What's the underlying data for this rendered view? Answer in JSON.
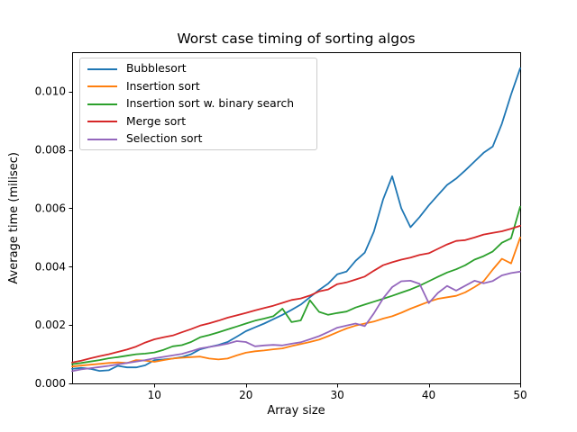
{
  "chart_data": {
    "type": "line",
    "title": "Worst case timing of sorting algos",
    "xlabel": "Array size",
    "ylabel": "Average time (milisec)",
    "grid": false,
    "legend_position": "upper left",
    "xlim": [
      1,
      50
    ],
    "ylim": [
      0,
      0.011348
    ],
    "xticks": [
      10,
      20,
      30,
      40,
      50
    ],
    "xtick_labels": [
      "10",
      "20",
      "30",
      "40",
      "50"
    ],
    "yticks": [
      0.0,
      0.002,
      0.004,
      0.006,
      0.008,
      0.01
    ],
    "ytick_labels": [
      "0.000",
      "0.002",
      "0.004",
      "0.006",
      "0.008",
      "0.010"
    ],
    "x": [
      1,
      2,
      3,
      4,
      5,
      6,
      7,
      8,
      9,
      10,
      11,
      12,
      13,
      14,
      15,
      16,
      17,
      18,
      19,
      20,
      21,
      22,
      23,
      24,
      25,
      26,
      27,
      28,
      29,
      30,
      31,
      32,
      33,
      34,
      35,
      36,
      37,
      38,
      39,
      40,
      41,
      42,
      43,
      44,
      45,
      46,
      47,
      48,
      49,
      50
    ],
    "series": [
      {
        "name": "Bubblesort",
        "color": "#1f77b4",
        "values": [
          0.0005,
          0.00053,
          0.0005,
          0.00043,
          0.00045,
          0.0006,
          0.00055,
          0.00055,
          0.00062,
          0.0008,
          0.00082,
          0.00085,
          0.0009,
          0.001,
          0.00117,
          0.00125,
          0.00132,
          0.00142,
          0.0016,
          0.00179,
          0.00192,
          0.00205,
          0.0022,
          0.00235,
          0.00252,
          0.0027,
          0.00295,
          0.0032,
          0.00342,
          0.00374,
          0.00383,
          0.0042,
          0.00448,
          0.0052,
          0.0063,
          0.0071,
          0.006,
          0.00535,
          0.0057,
          0.0061,
          0.00645,
          0.0068,
          0.00702,
          0.0073,
          0.0076,
          0.0079,
          0.00812,
          0.0089,
          0.0099,
          0.0108
        ]
      },
      {
        "name": "Insertion sort",
        "color": "#ff7f0e",
        "values": [
          0.00058,
          0.00061,
          0.00064,
          0.00067,
          0.0007,
          0.00072,
          0.0007,
          0.0008,
          0.00078,
          0.00074,
          0.0008,
          0.00085,
          0.00088,
          0.0009,
          0.00092,
          0.00085,
          0.00082,
          0.00085,
          0.00096,
          0.00105,
          0.0011,
          0.00113,
          0.00117,
          0.0012,
          0.00128,
          0.00135,
          0.00142,
          0.0015,
          0.00162,
          0.00175,
          0.00188,
          0.00198,
          0.00205,
          0.00212,
          0.00222,
          0.0023,
          0.00242,
          0.00256,
          0.00268,
          0.0028,
          0.0029,
          0.00295,
          0.003,
          0.00312,
          0.0033,
          0.0035,
          0.0039,
          0.00427,
          0.00411,
          0.005
        ]
      },
      {
        "name": "Insertion sort w. binary search",
        "color": "#2ca02c",
        "values": [
          0.00066,
          0.0007,
          0.00075,
          0.0008,
          0.00086,
          0.0009,
          0.00095,
          0.001,
          0.00102,
          0.00106,
          0.00115,
          0.00127,
          0.00131,
          0.00142,
          0.00158,
          0.00166,
          0.00175,
          0.00185,
          0.00195,
          0.00205,
          0.00215,
          0.00222,
          0.0023,
          0.00256,
          0.0021,
          0.00216,
          0.00285,
          0.00245,
          0.00235,
          0.00241,
          0.00246,
          0.0026,
          0.0027,
          0.0028,
          0.0029,
          0.003,
          0.00311,
          0.00322,
          0.00335,
          0.0035,
          0.00365,
          0.0038,
          0.00391,
          0.00405,
          0.00424,
          0.00436,
          0.00452,
          0.00482,
          0.00497,
          0.00605
        ]
      },
      {
        "name": "Merge sort",
        "color": "#d62728",
        "values": [
          0.00072,
          0.00078,
          0.00086,
          0.00093,
          0.001,
          0.00108,
          0.00116,
          0.00126,
          0.0014,
          0.00151,
          0.00158,
          0.00164,
          0.00175,
          0.00186,
          0.00198,
          0.00206,
          0.00215,
          0.00225,
          0.00233,
          0.00241,
          0.0025,
          0.00258,
          0.00266,
          0.00276,
          0.00286,
          0.00291,
          0.00301,
          0.00315,
          0.00322,
          0.0034,
          0.00346,
          0.00356,
          0.00366,
          0.00386,
          0.00405,
          0.00415,
          0.00424,
          0.00431,
          0.0044,
          0.00446,
          0.00461,
          0.00476,
          0.00488,
          0.00491,
          0.005,
          0.0051,
          0.00516,
          0.00521,
          0.0053,
          0.0054
        ]
      },
      {
        "name": "Selection sort",
        "color": "#9467bd",
        "values": [
          0.00042,
          0.00048,
          0.00052,
          0.00056,
          0.0006,
          0.00065,
          0.0007,
          0.00075,
          0.0008,
          0.00086,
          0.00091,
          0.00096,
          0.00101,
          0.0011,
          0.0012,
          0.00125,
          0.0013,
          0.00136,
          0.00145,
          0.00142,
          0.00127,
          0.0013,
          0.00132,
          0.0013,
          0.00136,
          0.00141,
          0.00151,
          0.00162,
          0.00176,
          0.00191,
          0.00198,
          0.00205,
          0.00196,
          0.0024,
          0.00291,
          0.0033,
          0.0035,
          0.00352,
          0.00341,
          0.00275,
          0.0031,
          0.00334,
          0.00318,
          0.00335,
          0.00352,
          0.00343,
          0.00351,
          0.0037,
          0.00378,
          0.00383
        ]
      }
    ]
  }
}
